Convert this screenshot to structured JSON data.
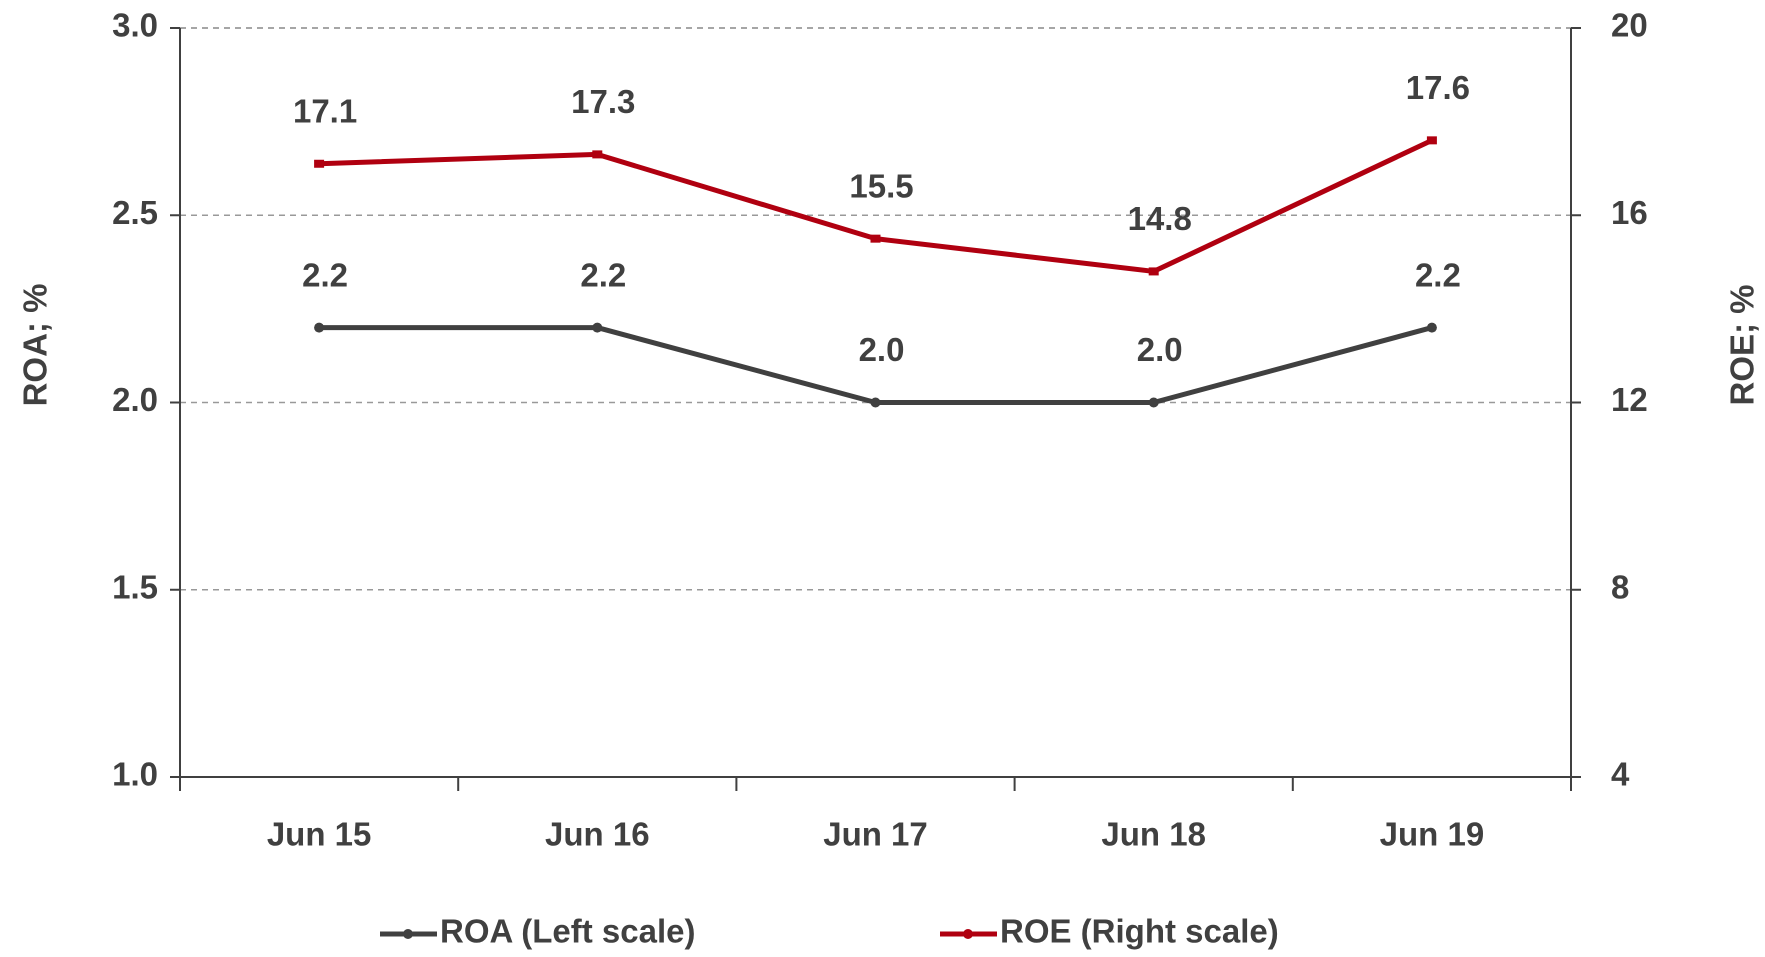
{
  "chart_data": {
    "type": "line",
    "categories": [
      "Jun 15",
      "Jun 16",
      "Jun 17",
      "Jun 18",
      "Jun 19"
    ],
    "series": [
      {
        "name": "ROA (Left scale)",
        "color": "#404040",
        "values": [
          2.2,
          2.2,
          2.0,
          2.0,
          2.2
        ],
        "value_labels": [
          "2.2",
          "2.2",
          "2.0",
          "2.0",
          "2.2"
        ]
      },
      {
        "name": "ROE (Right scale)",
        "color": "#b00010",
        "axis": "y2",
        "values": [
          17.1,
          17.3,
          15.5,
          14.8,
          17.6
        ]
      }
    ],
    "ylabel": "ROA; %",
    "y2label": "ROE; %",
    "ylim": [
      1.0,
      3.0
    ],
    "yticks": [
      {
        "value": 1.0,
        "label": "1.0"
      },
      1.5,
      {
        "value": 2.0,
        "label": "2.0"
      },
      2.5,
      {
        "value": 3.0,
        "label": "3.0"
      }
    ],
    "y2lim": [
      4,
      20
    ],
    "y2ticks": [
      4,
      8,
      12,
      16,
      20
    ],
    "grid": true,
    "legend": "bottom"
  }
}
